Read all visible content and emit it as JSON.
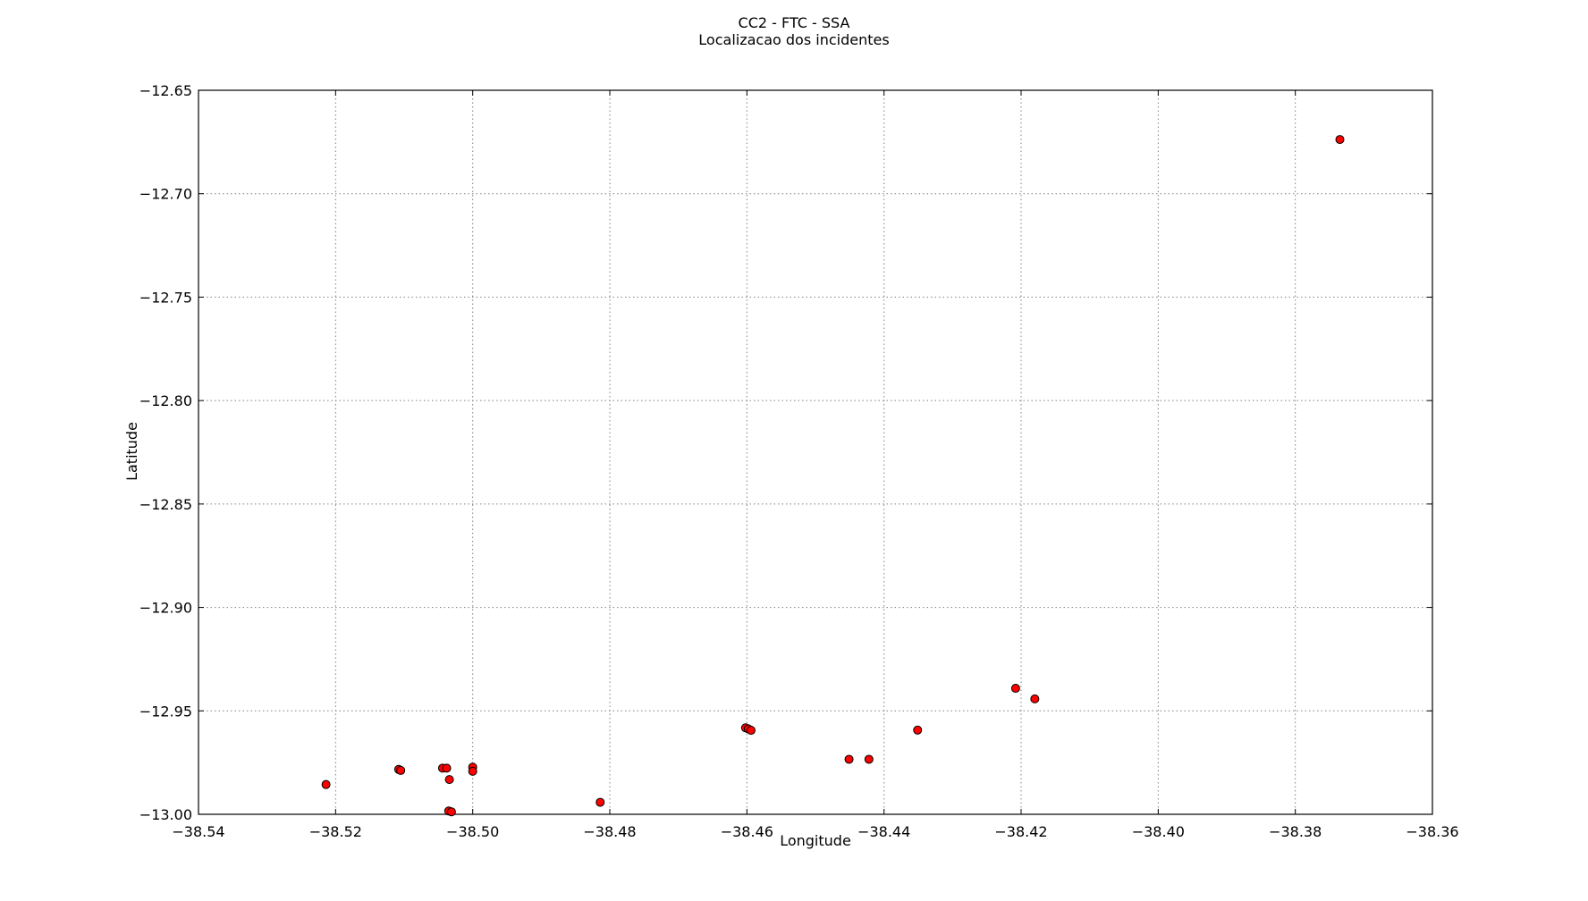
{
  "chart_data": {
    "type": "scatter",
    "title": "CC2 - FTC - SSA",
    "subtitle": "Localizacao dos incidentes",
    "xlabel": "Longitude",
    "ylabel": "Latitude",
    "xlim": [
      -38.54,
      -38.36
    ],
    "ylim": [
      -13.0,
      -12.65
    ],
    "grid": true,
    "marker_color": "#ff0000",
    "marker_edge_color": "#000000",
    "x_ticks": [
      -38.54,
      -38.52,
      -38.5,
      -38.48,
      -38.46,
      -38.44,
      -38.42,
      -38.4,
      -38.38,
      -38.36
    ],
    "x_tick_labels": [
      "−38.54",
      "−38.52",
      "−38.50",
      "−38.48",
      "−38.46",
      "−38.44",
      "−38.42",
      "−38.40",
      "−38.38",
      "−38.36"
    ],
    "y_ticks": [
      -12.65,
      -12.7,
      -12.75,
      -12.8,
      -12.85,
      -12.9,
      -12.95,
      -13.0
    ],
    "y_tick_labels": [
      "−12.65",
      "−12.70",
      "−12.75",
      "−12.80",
      "−12.85",
      "−12.90",
      "−12.95",
      "−13.00"
    ],
    "points": [
      {
        "x": -38.3735,
        "y": -12.6738
      },
      {
        "x": -38.5214,
        "y": -12.9856
      },
      {
        "x": -38.5108,
        "y": -12.9783
      },
      {
        "x": -38.5105,
        "y": -12.9788
      },
      {
        "x": -38.5044,
        "y": -12.9777
      },
      {
        "x": -38.5038,
        "y": -12.9777
      },
      {
        "x": -38.5,
        "y": -12.9772
      },
      {
        "x": -38.5,
        "y": -12.9792
      },
      {
        "x": -38.5034,
        "y": -12.9832
      },
      {
        "x": -38.5035,
        "y": -12.9984
      },
      {
        "x": -38.5031,
        "y": -12.9988
      },
      {
        "x": -38.4814,
        "y": -12.9942
      },
      {
        "x": -38.4602,
        "y": -12.9582
      },
      {
        "x": -38.4598,
        "y": -12.9587
      },
      {
        "x": -38.4594,
        "y": -12.9594
      },
      {
        "x": -38.4451,
        "y": -12.9734
      },
      {
        "x": -38.4422,
        "y": -12.9734
      },
      {
        "x": -38.4351,
        "y": -12.9593
      },
      {
        "x": -38.4208,
        "y": -12.9391
      },
      {
        "x": -38.418,
        "y": -12.9442
      }
    ]
  }
}
